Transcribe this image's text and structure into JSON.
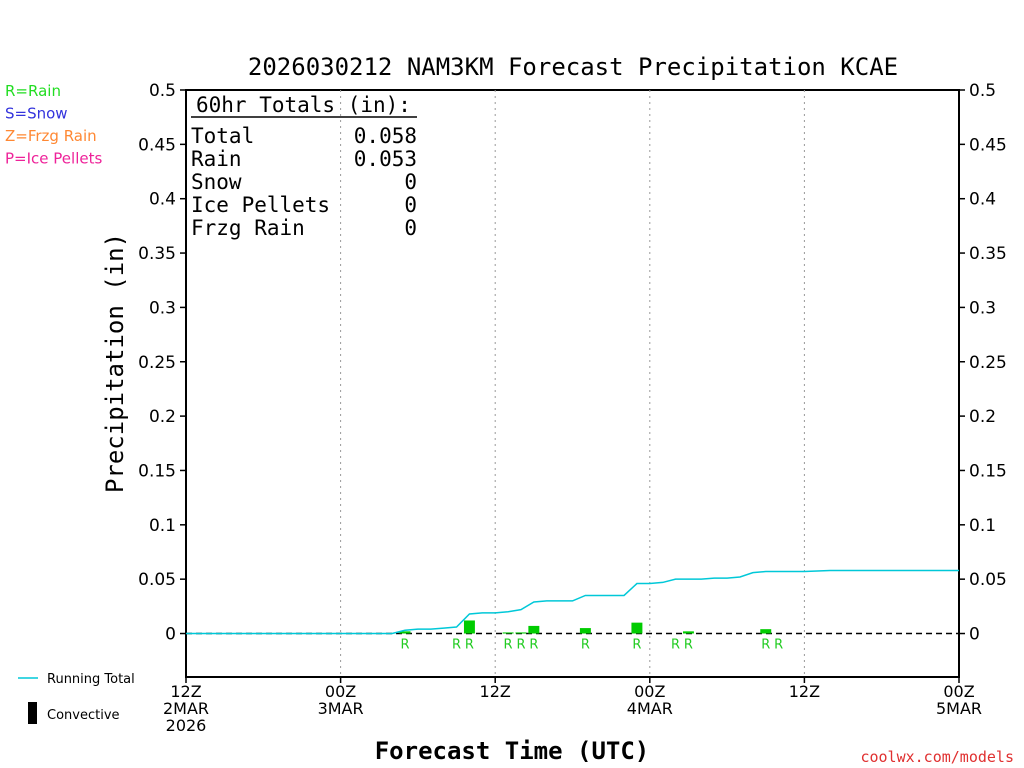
{
  "chart_data": {
    "type": "bar",
    "title": "2026030212 NAM3KM Forecast Precipitation KCAE",
    "xlabel": "Forecast Time (UTC)",
    "ylabel": "Precipitation (in)",
    "ylim": [
      -0.04,
      0.5
    ],
    "yticks": [
      0,
      0.05,
      0.1,
      0.15,
      0.2,
      0.25,
      0.3,
      0.35,
      0.4,
      0.45,
      0.5
    ],
    "ytick_labels": [
      "0",
      "0.05",
      "0.1",
      "0.15",
      "0.2",
      "0.25",
      "0.3",
      "0.35",
      "0.4",
      "0.45",
      "0.5"
    ],
    "xlim_hours": [
      0,
      60
    ],
    "xticks": [
      {
        "hour": 0,
        "lines": [
          "12Z",
          "2MAR",
          "2026"
        ]
      },
      {
        "hour": 12,
        "lines": [
          "00Z",
          "3MAR"
        ]
      },
      {
        "hour": 24,
        "lines": [
          "12Z"
        ]
      },
      {
        "hour": 36,
        "lines": [
          "00Z",
          "4MAR"
        ]
      },
      {
        "hour": 48,
        "lines": [
          "12Z"
        ]
      },
      {
        "hour": 60,
        "lines": [
          "00Z",
          "5MAR"
        ]
      }
    ],
    "legend_types": [
      {
        "label": "R=Rain",
        "color": "#22dd22"
      },
      {
        "label": "S=Snow",
        "color": "#3333dd"
      },
      {
        "label": "Z=Frzg Rain",
        "color": "#ff8833"
      },
      {
        "label": "P=Ice Pellets",
        "color": "#ee2299"
      }
    ],
    "legend_series": [
      {
        "label": "Running Total",
        "color": "#00c8d8",
        "kind": "line"
      },
      {
        "label": "Convective",
        "color": "#000000",
        "kind": "bar"
      }
    ],
    "totals": {
      "heading": "60hr Totals (in):",
      "rows": [
        {
          "label": "Total",
          "value": "0.058"
        },
        {
          "label": "Rain",
          "value": "0.053"
        },
        {
          "label": "Snow",
          "value": "0"
        },
        {
          "label": "Ice Pellets",
          "value": "0"
        },
        {
          "label": "Frzg Rain",
          "value": "0"
        }
      ]
    },
    "bars": [
      {
        "hour": 17,
        "value": 0.002
      },
      {
        "hour": 22,
        "value": 0.012
      },
      {
        "hour": 25,
        "value": 0.001
      },
      {
        "hour": 26,
        "value": 0.001
      },
      {
        "hour": 27,
        "value": 0.007
      },
      {
        "hour": 31,
        "value": 0.005
      },
      {
        "hour": 35,
        "value": 0.01
      },
      {
        "hour": 39,
        "value": 0.002
      },
      {
        "hour": 45,
        "value": 0.004
      }
    ],
    "precip_type_marks": [
      {
        "hour": 17,
        "label": "R"
      },
      {
        "hour": 21,
        "label": "R"
      },
      {
        "hour": 22,
        "label": "R"
      },
      {
        "hour": 25,
        "label": "R"
      },
      {
        "hour": 26,
        "label": "R"
      },
      {
        "hour": 27,
        "label": "R"
      },
      {
        "hour": 31,
        "label": "R"
      },
      {
        "hour": 35,
        "label": "R"
      },
      {
        "hour": 38,
        "label": "R"
      },
      {
        "hour": 39,
        "label": "R"
      },
      {
        "hour": 45,
        "label": "R"
      },
      {
        "hour": 46,
        "label": "R"
      }
    ],
    "running_total": {
      "hours": [
        0,
        16,
        17,
        18,
        19,
        20,
        21,
        22,
        23,
        24,
        25,
        26,
        27,
        28,
        29,
        30,
        31,
        32,
        33,
        34,
        35,
        36,
        37,
        38,
        39,
        40,
        41,
        42,
        43,
        44,
        45,
        46,
        47,
        48,
        50,
        52,
        54,
        56,
        58,
        60
      ],
      "values": [
        0,
        0,
        0.003,
        0.004,
        0.004,
        0.005,
        0.006,
        0.018,
        0.019,
        0.019,
        0.02,
        0.022,
        0.029,
        0.03,
        0.03,
        0.03,
        0.035,
        0.035,
        0.035,
        0.035,
        0.046,
        0.046,
        0.047,
        0.05,
        0.05,
        0.05,
        0.051,
        0.051,
        0.052,
        0.056,
        0.057,
        0.057,
        0.057,
        0.057,
        0.058,
        0.058,
        0.058,
        0.058,
        0.058,
        0.058
      ]
    },
    "credit": "coolwx.com/models"
  }
}
